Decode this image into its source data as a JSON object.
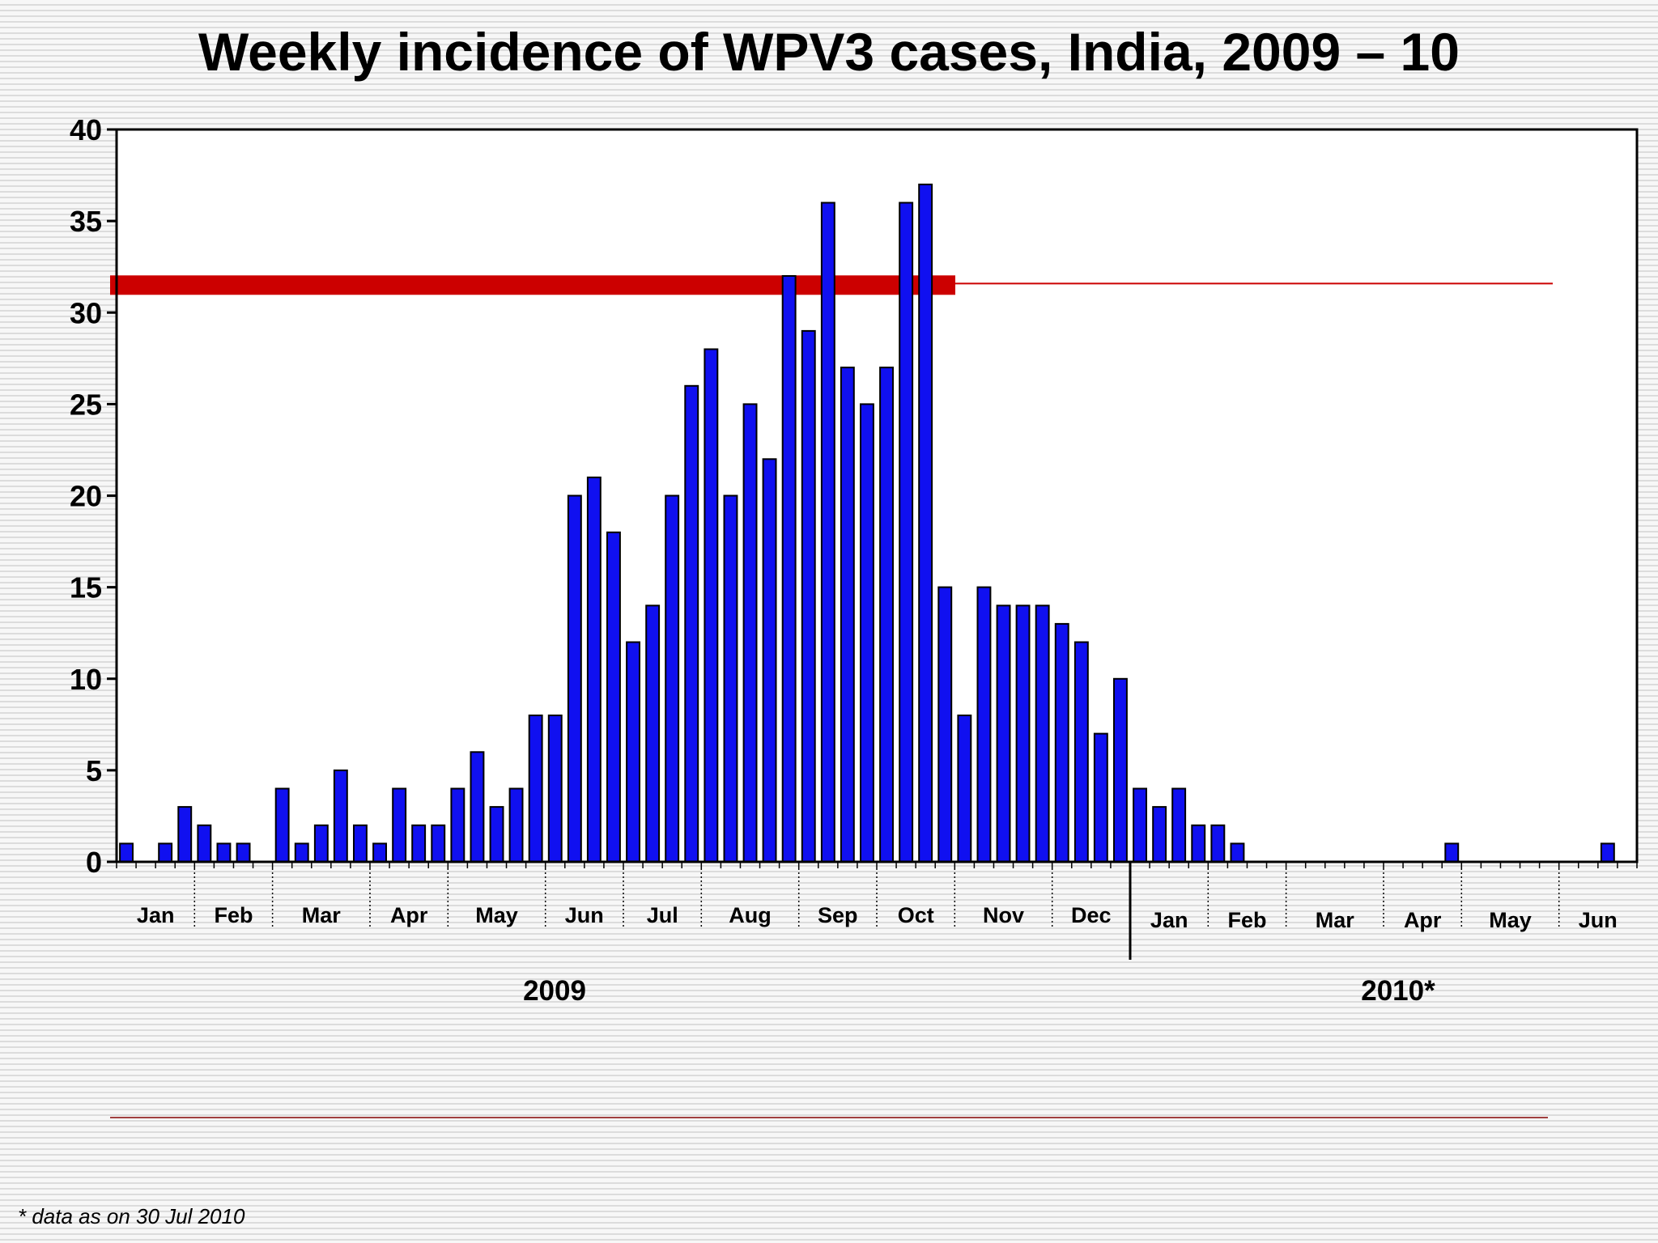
{
  "title": "Weekly incidence of WPV3 cases, India, 2009 – 10",
  "footnote": "* data as on 30 Jul 2010",
  "colors": {
    "bar": "#1010f0",
    "threshold": "#cc0000",
    "divider": "#a04040"
  },
  "chart_data": {
    "type": "bar",
    "title": "Weekly incidence of WPV3 cases, India, 2009 – 10",
    "xlabel": "",
    "ylabel": "",
    "ylim": [
      0,
      40
    ],
    "yticks": [
      0,
      5,
      10,
      15,
      20,
      25,
      30,
      35,
      40
    ],
    "grid": false,
    "threshold_line": {
      "value": 31.5
    },
    "weeks_2009": 52,
    "weeks_2010": 26,
    "values": [
      1,
      0,
      1,
      3,
      2,
      1,
      1,
      0,
      4,
      1,
      2,
      5,
      2,
      1,
      4,
      2,
      2,
      4,
      6,
      3,
      4,
      8,
      8,
      20,
      21,
      18,
      12,
      14,
      20,
      26,
      28,
      20,
      25,
      22,
      32,
      29,
      36,
      27,
      25,
      27,
      36,
      37,
      15,
      8,
      15,
      14,
      14,
      14,
      13,
      12,
      7,
      10,
      4,
      3,
      4,
      2,
      2,
      1,
      0,
      0,
      0,
      0,
      0,
      0,
      0,
      0,
      0,
      0,
      1,
      0,
      0,
      0,
      0,
      0,
      0,
      0,
      1,
      0
    ],
    "months": [
      {
        "label": "Jan",
        "year": "2009",
        "start": 0,
        "end": 4
      },
      {
        "label": "Feb",
        "year": "2009",
        "start": 4,
        "end": 8
      },
      {
        "label": "Mar",
        "year": "2009",
        "start": 8,
        "end": 13
      },
      {
        "label": "Apr",
        "year": "2009",
        "start": 13,
        "end": 17
      },
      {
        "label": "May",
        "year": "2009",
        "start": 17,
        "end": 22
      },
      {
        "label": "Jun",
        "year": "2009",
        "start": 22,
        "end": 26
      },
      {
        "label": "Jul",
        "year": "2009",
        "start": 26,
        "end": 30
      },
      {
        "label": "Aug",
        "year": "2009",
        "start": 30,
        "end": 35
      },
      {
        "label": "Sep",
        "year": "2009",
        "start": 35,
        "end": 39
      },
      {
        "label": "Oct",
        "year": "2009",
        "start": 39,
        "end": 43
      },
      {
        "label": "Nov",
        "year": "2009",
        "start": 43,
        "end": 48
      },
      {
        "label": "Dec",
        "year": "2009",
        "start": 48,
        "end": 52
      },
      {
        "label": "Jan",
        "year": "2010*",
        "start": 52,
        "end": 56
      },
      {
        "label": "Feb",
        "year": "2010*",
        "start": 56,
        "end": 60
      },
      {
        "label": "Mar",
        "year": "2010*",
        "start": 60,
        "end": 65
      },
      {
        "label": "Apr",
        "year": "2010*",
        "start": 65,
        "end": 69
      },
      {
        "label": "May",
        "year": "2010*",
        "start": 69,
        "end": 74
      },
      {
        "label": "Jun",
        "year": "2010*",
        "start": 74,
        "end": 78
      }
    ],
    "years": [
      "2009",
      "2010*"
    ]
  }
}
